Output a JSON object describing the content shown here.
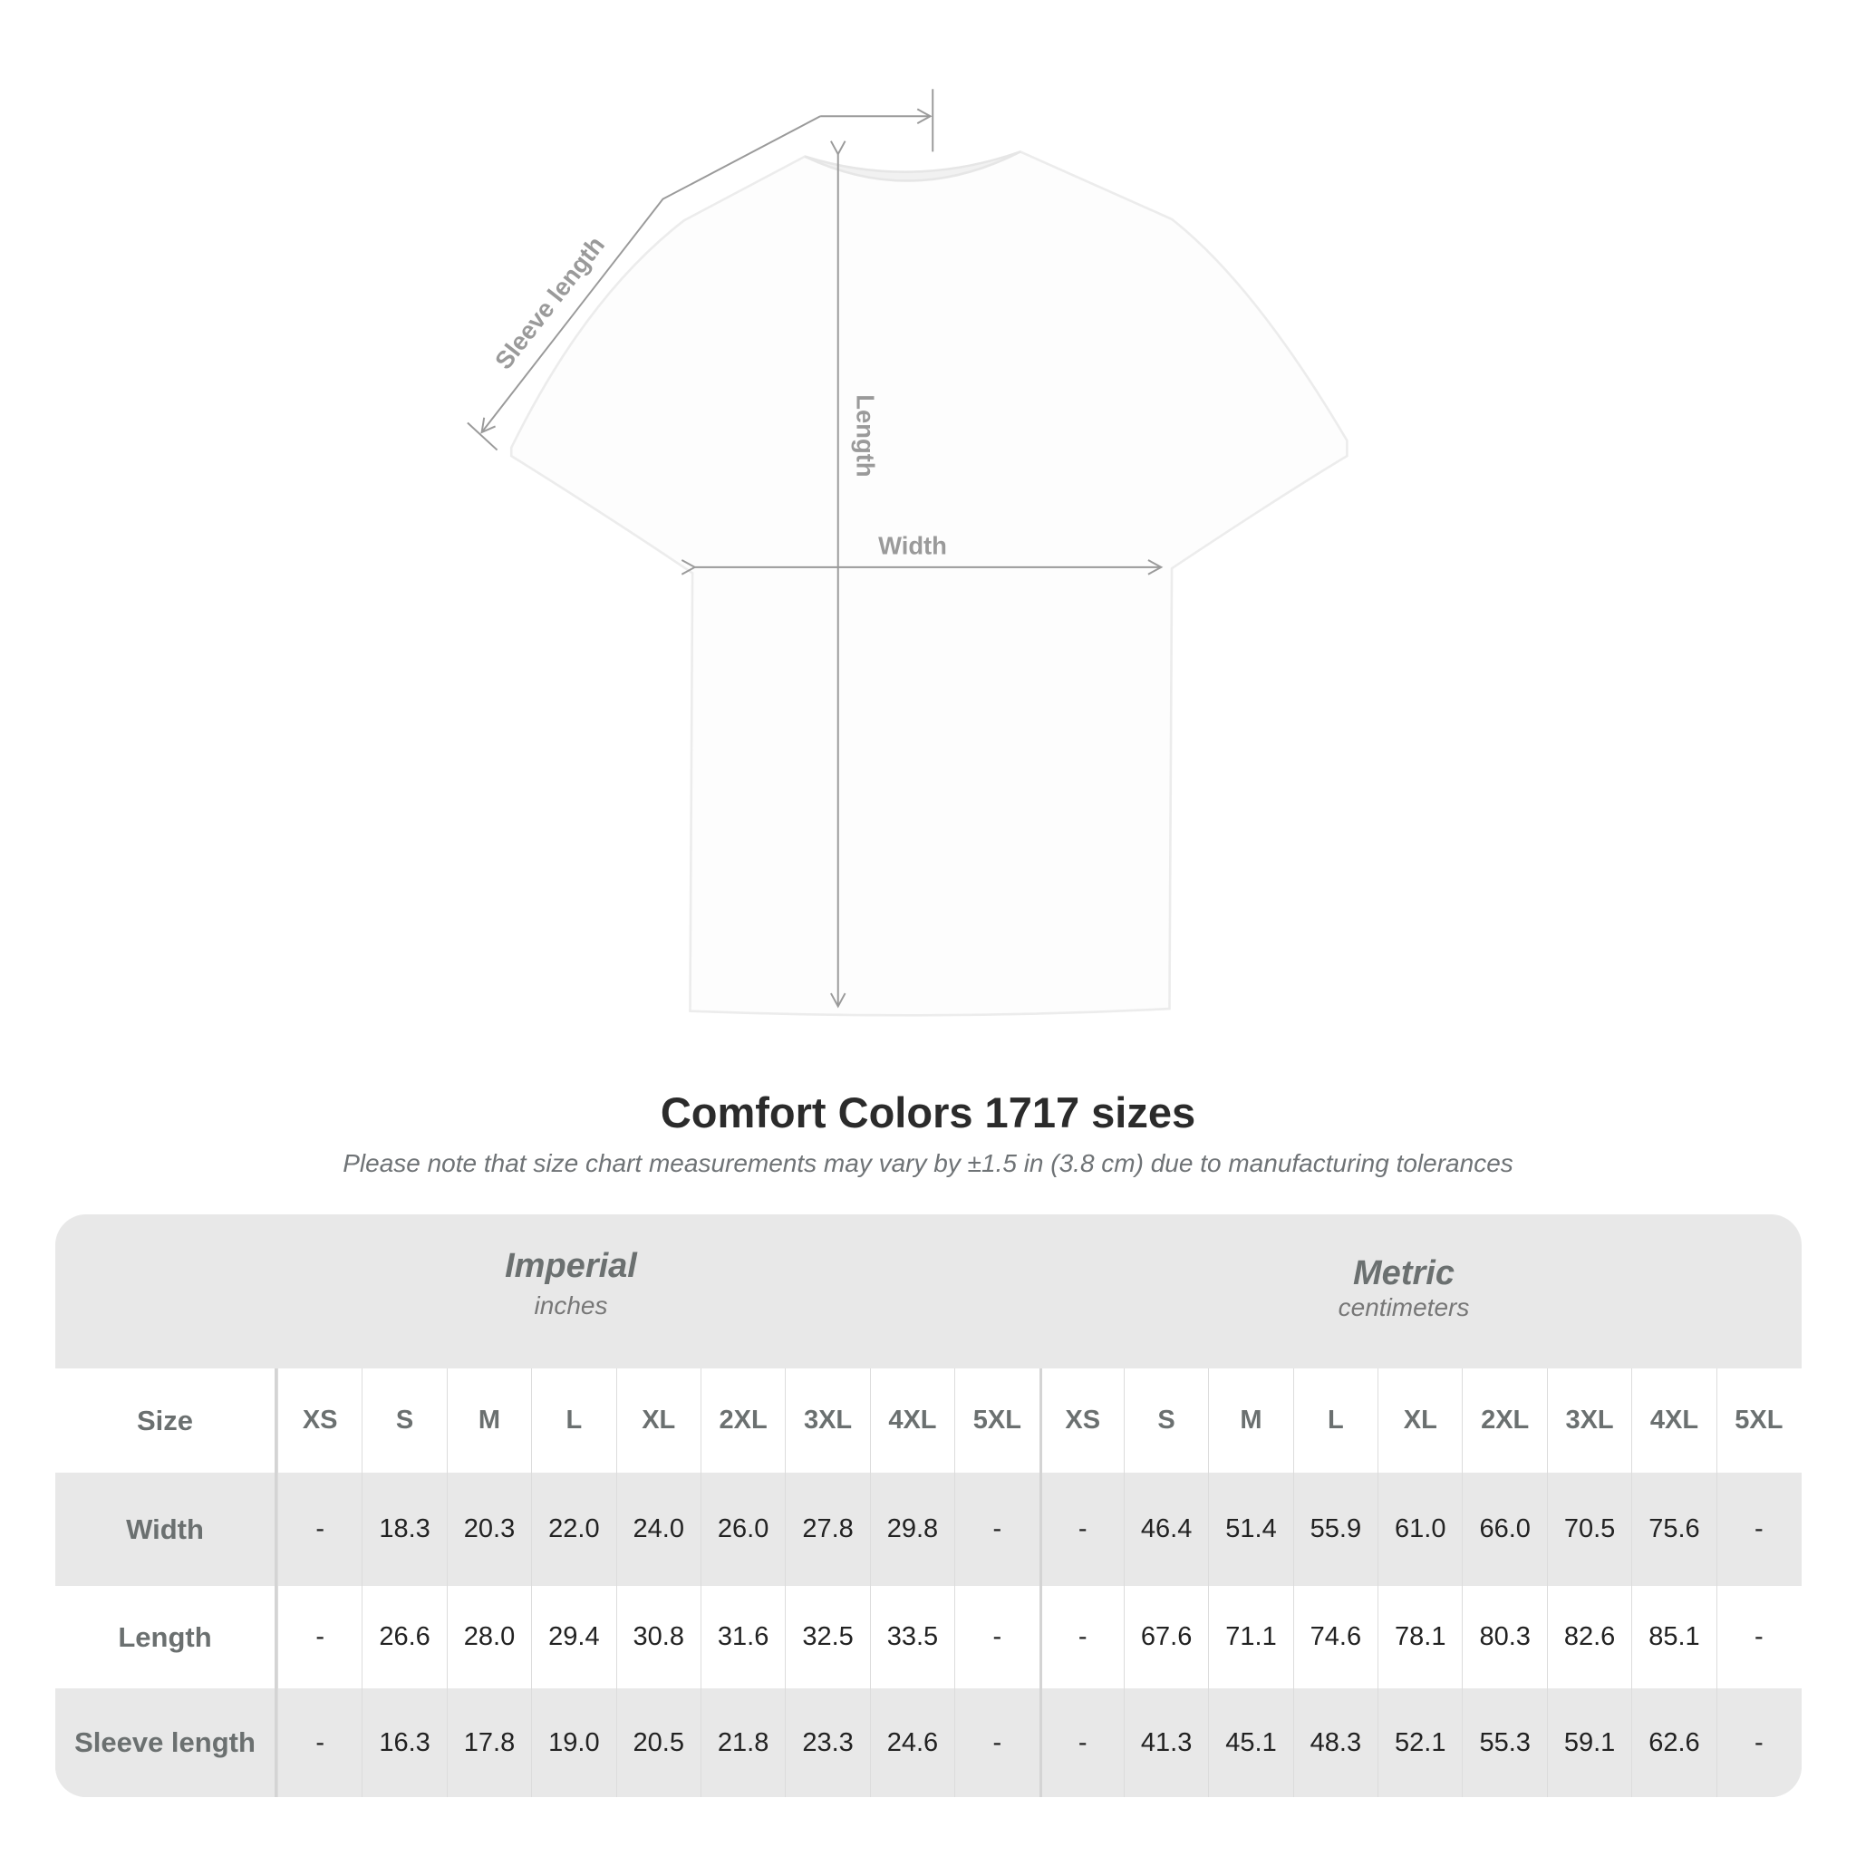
{
  "diagram": {
    "labels": {
      "sleeve_length": "Sleeve length",
      "length": "Length",
      "width": "Width"
    }
  },
  "title": "Comfort Colors 1717 sizes",
  "note": "Please note that size chart measurements may vary by ±1.5 in (3.8 cm) due to manufacturing tolerances",
  "table": {
    "imperial": {
      "heading": "Imperial",
      "unit": "inches"
    },
    "metric": {
      "heading": "Metric",
      "unit": "centimeters"
    },
    "size_label": "Size",
    "sizes": [
      "XS",
      "S",
      "M",
      "L",
      "XL",
      "2XL",
      "3XL",
      "4XL",
      "5XL"
    ],
    "rows": [
      {
        "label": "Width",
        "imperial": [
          "-",
          "18.3",
          "20.3",
          "22.0",
          "24.0",
          "26.0",
          "27.8",
          "29.8",
          "-"
        ],
        "metric": [
          "-",
          "46.4",
          "51.4",
          "55.9",
          "61.0",
          "66.0",
          "70.5",
          "75.6",
          "-"
        ]
      },
      {
        "label": "Length",
        "imperial": [
          "-",
          "26.6",
          "28.0",
          "29.4",
          "30.8",
          "31.6",
          "32.5",
          "33.5",
          "-"
        ],
        "metric": [
          "-",
          "67.6",
          "71.1",
          "74.6",
          "78.1",
          "80.3",
          "82.6",
          "85.1",
          "-"
        ]
      },
      {
        "label": "Sleeve length",
        "imperial": [
          "-",
          "16.3",
          "17.8",
          "19.0",
          "20.5",
          "21.8",
          "23.3",
          "24.6",
          "-"
        ],
        "metric": [
          "-",
          "41.3",
          "45.1",
          "48.3",
          "52.1",
          "55.3",
          "59.1",
          "62.6",
          "-"
        ]
      }
    ]
  },
  "colors": {
    "header_bg": "#e8e8e8",
    "label_text": "#6b7070",
    "measure_line": "#9a9a9a"
  }
}
